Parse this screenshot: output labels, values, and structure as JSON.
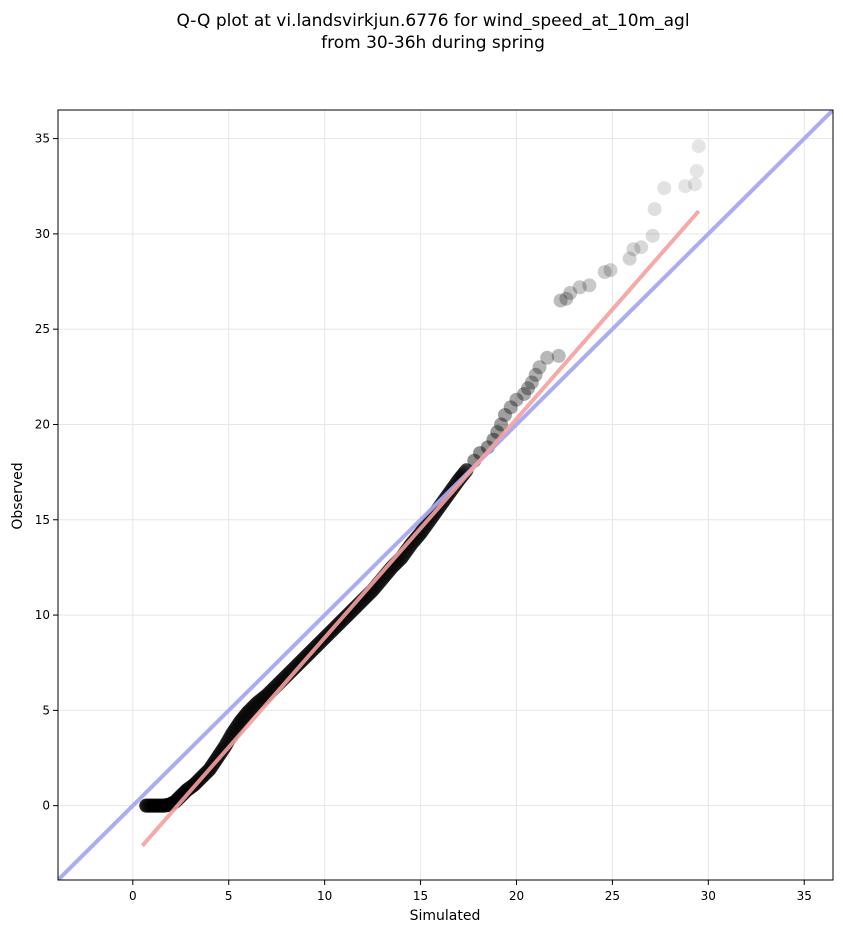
{
  "chart_data": {
    "type": "scatter",
    "title_lines": [
      "Q-Q plot at vi.landsvirkjun.6776 for wind_speed_at_10m_agl",
      "from 30-36h during spring"
    ],
    "xlabel": "Simulated",
    "ylabel": "Observed",
    "xlim": [
      -3.9,
      36.5
    ],
    "ylim": [
      -3.9,
      36.5
    ],
    "xticks": [
      0,
      5,
      10,
      15,
      20,
      25,
      30,
      35
    ],
    "yticks": [
      0,
      5,
      10,
      15,
      20,
      25,
      30,
      35
    ],
    "grid": true,
    "colors": {
      "points": "#000000",
      "fit_line": "#f4a0a0",
      "identity_line": "#a8a8f0"
    },
    "fit_line": {
      "x": [
        0.5,
        29.5
      ],
      "y": [
        -2.1,
        31.2
      ]
    },
    "identity_line": {
      "x": [
        -3.9,
        36.5
      ],
      "y": [
        -3.9,
        36.5
      ]
    },
    "dense_points": [
      [
        0.7,
        0.0
      ],
      [
        1.0,
        0.0
      ],
      [
        1.3,
        0.0
      ],
      [
        1.6,
        0.0
      ],
      [
        1.9,
        0.05
      ],
      [
        2.2,
        0.2
      ],
      [
        2.5,
        0.5
      ],
      [
        2.8,
        0.8
      ],
      [
        3.2,
        1.1
      ],
      [
        3.6,
        1.5
      ],
      [
        4.0,
        1.9
      ],
      [
        4.4,
        2.5
      ],
      [
        4.8,
        3.1
      ],
      [
        5.2,
        3.8
      ],
      [
        5.6,
        4.4
      ],
      [
        6.0,
        4.9
      ],
      [
        6.5,
        5.4
      ],
      [
        7.0,
        5.8
      ],
      [
        7.5,
        6.3
      ],
      [
        8.0,
        6.8
      ],
      [
        8.5,
        7.3
      ],
      [
        9.0,
        7.8
      ],
      [
        9.5,
        8.3
      ],
      [
        10.0,
        8.8
      ],
      [
        10.5,
        9.3
      ],
      [
        11.0,
        9.8
      ],
      [
        11.5,
        10.3
      ],
      [
        12.0,
        10.8
      ],
      [
        12.5,
        11.3
      ],
      [
        13.0,
        11.9
      ],
      [
        13.5,
        12.5
      ],
      [
        14.0,
        13.0
      ],
      [
        14.5,
        13.7
      ],
      [
        15.0,
        14.3
      ],
      [
        15.5,
        15.0
      ],
      [
        16.0,
        15.7
      ],
      [
        16.5,
        16.4
      ],
      [
        17.0,
        17.1
      ],
      [
        17.4,
        17.6
      ]
    ],
    "tail_points": [
      [
        17.8,
        18.1
      ],
      [
        18.1,
        18.5
      ],
      [
        18.5,
        18.8
      ],
      [
        18.8,
        19.2
      ],
      [
        19.0,
        19.6
      ],
      [
        19.2,
        20.0
      ],
      [
        19.4,
        20.5
      ],
      [
        19.7,
        20.9
      ],
      [
        20.0,
        21.3
      ],
      [
        20.4,
        21.6
      ],
      [
        20.6,
        21.9
      ],
      [
        20.8,
        22.2
      ],
      [
        21.0,
        22.6
      ],
      [
        21.2,
        23.0
      ],
      [
        21.6,
        23.5
      ],
      [
        22.2,
        23.6
      ],
      [
        22.3,
        26.5
      ],
      [
        22.6,
        26.6
      ],
      [
        22.8,
        26.9
      ],
      [
        23.3,
        27.2
      ],
      [
        23.8,
        27.3
      ],
      [
        24.6,
        28.0
      ],
      [
        24.9,
        28.1
      ],
      [
        25.9,
        28.7
      ],
      [
        26.1,
        29.2
      ],
      [
        26.5,
        29.3
      ],
      [
        27.1,
        29.9
      ],
      [
        27.2,
        31.3
      ],
      [
        27.7,
        32.4
      ],
      [
        28.8,
        32.5
      ],
      [
        29.3,
        32.6
      ],
      [
        29.4,
        33.3
      ],
      [
        29.5,
        34.6
      ]
    ]
  }
}
